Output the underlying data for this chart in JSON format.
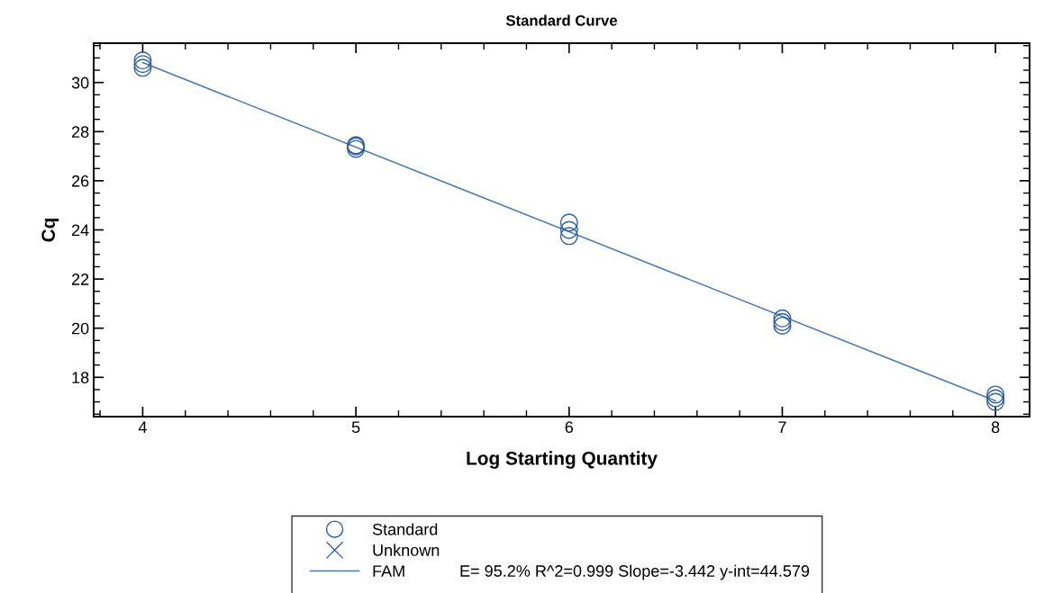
{
  "chart_data": {
    "type": "scatter",
    "title": "Standard Curve",
    "xlabel": "Log Starting Quantity",
    "ylabel": "Cq",
    "xlim": [
      3.77,
      8.16
    ],
    "xticks": [
      4,
      5,
      6,
      7,
      8
    ],
    "ylim": [
      16.4,
      31.6
    ],
    "yticks": [
      18,
      20,
      22,
      24,
      26,
      28,
      30
    ],
    "grid": false,
    "legend": "bottom",
    "series": [
      {
        "name": "Standard",
        "marker": "circle",
        "color": "#2e5fa0",
        "x": [
          4,
          4,
          4,
          5,
          5,
          5,
          6,
          6,
          6,
          7,
          7,
          7,
          8,
          8,
          8
        ],
        "values": [
          30.9,
          30.75,
          30.6,
          27.45,
          27.4,
          27.3,
          24.3,
          24.0,
          23.75,
          20.4,
          20.25,
          20.1,
          17.3,
          17.15,
          17.0
        ]
      },
      {
        "name": "Unknown",
        "marker": "cross",
        "color": "#2e5fa0"
      },
      {
        "name": "FAM",
        "type": "line",
        "marker": "none",
        "line_style": "solid",
        "color": "#4a7ab0",
        "x": [
          4,
          8
        ],
        "values": [
          30.81,
          17.04
        ]
      }
    ],
    "annotations": [
      "E= 95.2% R^2=0.999 Slope=-3.442 y-int=44.579"
    ]
  }
}
